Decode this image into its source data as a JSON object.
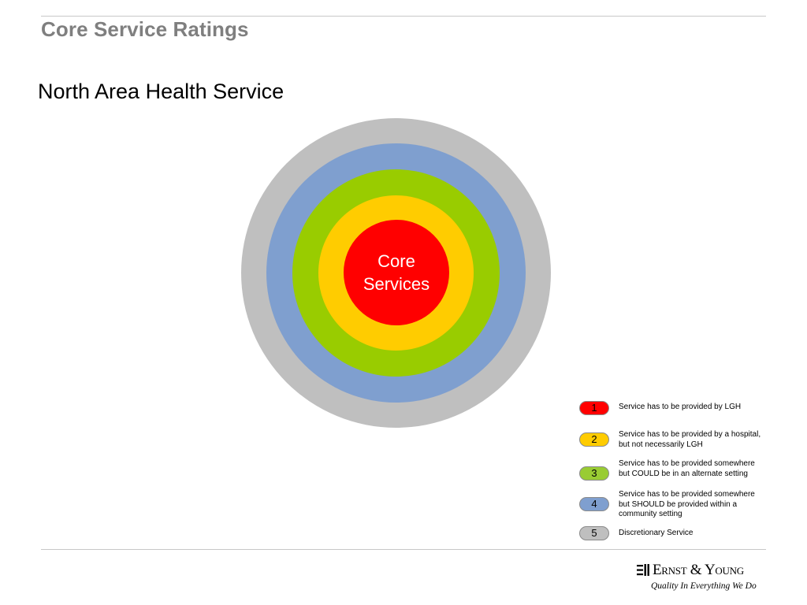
{
  "slide": {
    "title": "Core Service Ratings",
    "subtitle": "North Area Health Service"
  },
  "diagram": {
    "center_label": "Core\nServices",
    "rings": [
      {
        "level": 5,
        "color": "#bfbfbf"
      },
      {
        "level": 4,
        "color": "#7f9fcf"
      },
      {
        "level": 3,
        "color": "#99cc00"
      },
      {
        "level": 2,
        "color": "#ffcc00"
      },
      {
        "level": 1,
        "color": "#ff0000"
      }
    ]
  },
  "legend": {
    "items": [
      {
        "number": "1",
        "color": "#ff0000",
        "text": "Service has to be provided by LGH"
      },
      {
        "number": "2",
        "color": "#ffcc00",
        "text": "Service has to be provided by a hospital, but  not necessarily LGH"
      },
      {
        "number": "3",
        "color": "#99cc33",
        "text": "Service has to be provided somewhere but COULD be in an alternate setting"
      },
      {
        "number": "4",
        "color": "#7f9fcf",
        "text": "Service has to be provided somewhere but SHOULD be provided within a community setting"
      },
      {
        "number": "5",
        "color": "#bfbfbf",
        "text": "Discretionary Service"
      }
    ]
  },
  "footer": {
    "logo_name": "Ernst & Young",
    "logo_tagline": "Quality In Everything We Do"
  }
}
